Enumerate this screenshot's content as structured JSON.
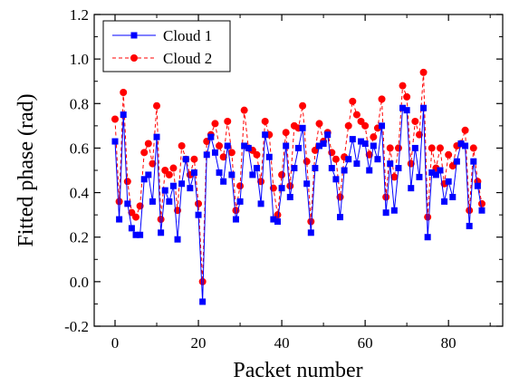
{
  "chart_data": {
    "type": "line",
    "xlabel": "Packet number",
    "ylabel": "Fitted phase (rad)",
    "xlim": [
      -5,
      93
    ],
    "ylim": [
      -0.2,
      1.2
    ],
    "xticks": [
      0,
      20,
      40,
      60,
      80
    ],
    "yticks": [
      -0.2,
      0.0,
      0.2,
      0.4,
      0.6,
      0.8,
      1.0,
      1.2
    ],
    "ytick_labels": [
      "-0.2",
      "0.0",
      "0.2",
      "0.4",
      "0.6",
      "0.8",
      "1.0",
      "1.2"
    ],
    "legend_position": "top-left",
    "grid": false,
    "series": [
      {
        "name": "Cloud 1",
        "color": "#0000ff",
        "marker": "square",
        "line_style": "solid",
        "x": [
          0,
          1,
          2,
          3,
          4,
          5,
          6,
          7,
          8,
          9,
          10,
          11,
          12,
          13,
          14,
          15,
          16,
          17,
          18,
          19,
          20,
          21,
          22,
          23,
          24,
          25,
          26,
          27,
          28,
          29,
          30,
          31,
          32,
          33,
          34,
          35,
          36,
          37,
          38,
          39,
          40,
          41,
          42,
          43,
          44,
          45,
          46,
          47,
          48,
          49,
          50,
          51,
          52,
          53,
          54,
          55,
          56,
          57,
          58,
          59,
          60,
          61,
          62,
          63,
          64,
          65,
          66,
          67,
          68,
          69,
          70,
          71,
          72,
          73,
          74,
          75,
          76,
          77,
          78,
          79,
          80,
          81,
          82,
          83,
          84,
          85,
          86,
          87,
          88
        ],
        "y": [
          0.63,
          0.28,
          0.75,
          0.35,
          0.24,
          0.21,
          0.21,
          0.46,
          0.48,
          0.36,
          0.65,
          0.22,
          0.41,
          0.36,
          0.43,
          0.19,
          0.44,
          0.55,
          0.42,
          0.49,
          0.3,
          -0.09,
          0.57,
          0.65,
          0.58,
          0.49,
          0.45,
          0.61,
          0.48,
          0.28,
          0.36,
          0.61,
          0.6,
          0.48,
          0.51,
          0.35,
          0.66,
          0.56,
          0.28,
          0.27,
          0.42,
          0.61,
          0.38,
          0.51,
          0.6,
          0.69,
          0.44,
          0.22,
          0.51,
          0.61,
          0.62,
          0.66,
          0.51,
          0.46,
          0.29,
          0.5,
          0.55,
          0.64,
          0.53,
          0.63,
          0.62,
          0.5,
          0.61,
          0.55,
          0.7,
          0.31,
          0.53,
          0.32,
          0.51,
          0.78,
          0.77,
          0.42,
          0.6,
          0.47,
          0.78,
          0.2,
          0.49,
          0.48,
          0.5,
          0.36,
          0.45,
          0.38,
          0.54,
          0.62,
          0.61,
          0.25,
          0.54,
          0.43,
          0.32
        ]
      },
      {
        "name": "Cloud 2",
        "color": "#ff0000",
        "marker": "circle",
        "line_style": "dashed",
        "x": [
          0,
          1,
          2,
          3,
          4,
          5,
          6,
          7,
          8,
          9,
          10,
          11,
          12,
          13,
          14,
          15,
          16,
          17,
          18,
          19,
          20,
          21,
          22,
          23,
          24,
          25,
          26,
          27,
          28,
          29,
          30,
          31,
          32,
          33,
          34,
          35,
          36,
          37,
          38,
          39,
          40,
          41,
          42,
          43,
          44,
          45,
          46,
          47,
          48,
          49,
          50,
          51,
          52,
          53,
          54,
          55,
          56,
          57,
          58,
          59,
          60,
          61,
          62,
          63,
          64,
          65,
          66,
          67,
          68,
          69,
          70,
          71,
          72,
          73,
          74,
          75,
          76,
          77,
          78,
          79,
          80,
          81,
          82,
          83,
          84,
          85,
          86,
          87,
          88
        ],
        "y": [
          0.73,
          0.36,
          0.85,
          0.45,
          0.31,
          0.29,
          0.34,
          0.58,
          0.62,
          0.53,
          0.79,
          0.28,
          0.5,
          0.48,
          0.51,
          0.32,
          0.61,
          0.55,
          0.48,
          0.55,
          0.35,
          0.0,
          0.63,
          0.66,
          0.71,
          0.61,
          0.56,
          0.72,
          0.58,
          0.32,
          0.43,
          0.77,
          0.6,
          0.59,
          0.57,
          0.45,
          0.72,
          0.66,
          0.42,
          0.3,
          0.48,
          0.67,
          0.43,
          0.7,
          0.69,
          0.79,
          0.54,
          0.27,
          0.59,
          0.71,
          0.63,
          0.67,
          0.58,
          0.55,
          0.38,
          0.56,
          0.7,
          0.81,
          0.75,
          0.72,
          0.7,
          0.57,
          0.65,
          0.69,
          0.82,
          0.38,
          0.6,
          0.47,
          0.6,
          0.88,
          0.83,
          0.53,
          0.72,
          0.66,
          0.94,
          0.29,
          0.6,
          0.51,
          0.6,
          0.44,
          0.57,
          0.52,
          0.61,
          0.62,
          0.68,
          0.32,
          0.6,
          0.45,
          0.35
        ]
      }
    ]
  }
}
